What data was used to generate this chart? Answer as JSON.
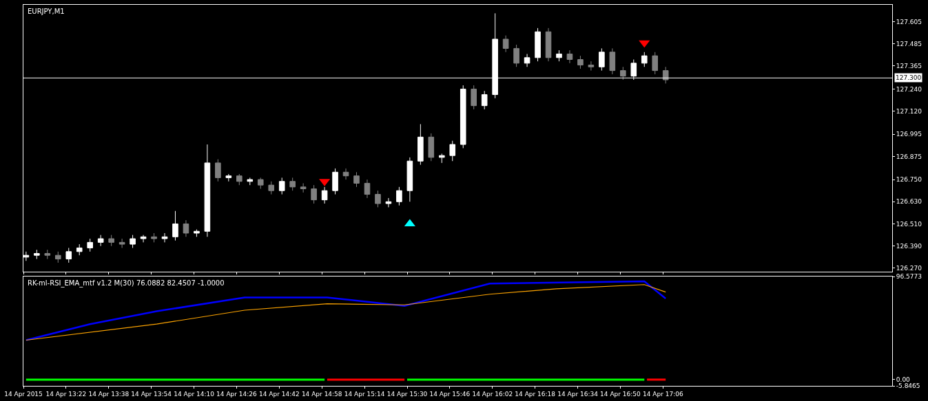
{
  "chart_data": [
    {
      "type": "candlestick",
      "title": "EURJPY,M1",
      "x": [
        "2015-04-14T13:07",
        "2015-04-14T13:11",
        "2015-04-14T13:15",
        "2015-04-14T13:19",
        "2015-04-14T13:23",
        "2015-04-14T13:27",
        "2015-04-14T13:31",
        "2015-04-14T13:35",
        "2015-04-14T13:39",
        "2015-04-14T13:43",
        "2015-04-14T13:47",
        "2015-04-14T13:51",
        "2015-04-14T13:55",
        "2015-04-14T13:59",
        "2015-04-14T14:03",
        "2015-04-14T14:07",
        "2015-04-14T14:11",
        "2015-04-14T14:15",
        "2015-04-14T14:19",
        "2015-04-14T14:23",
        "2015-04-14T14:27",
        "2015-04-14T14:31",
        "2015-04-14T14:35",
        "2015-04-14T14:39",
        "2015-04-14T14:43",
        "2015-04-14T14:47",
        "2015-04-14T14:51",
        "2015-04-14T14:55",
        "2015-04-14T14:59",
        "2015-04-14T15:03",
        "2015-04-14T15:07",
        "2015-04-14T15:11",
        "2015-04-14T15:15",
        "2015-04-14T15:19",
        "2015-04-14T15:23",
        "2015-04-14T15:27",
        "2015-04-14T15:31",
        "2015-04-14T15:35",
        "2015-04-14T15:39",
        "2015-04-14T15:43",
        "2015-04-14T15:47",
        "2015-04-14T15:51",
        "2015-04-14T15:55",
        "2015-04-14T15:59",
        "2015-04-14T16:03",
        "2015-04-14T16:07",
        "2015-04-14T16:11",
        "2015-04-14T16:15",
        "2015-04-14T16:19",
        "2015-04-14T16:23",
        "2015-04-14T16:27",
        "2015-04-14T16:31",
        "2015-04-14T16:35",
        "2015-04-14T16:39",
        "2015-04-14T16:43",
        "2015-04-14T16:47",
        "2015-04-14T16:51",
        "2015-04-14T16:55",
        "2015-04-14T16:59",
        "2015-04-14T17:03",
        "2015-04-14T17:07"
      ],
      "ohlc": [
        [
          126.33,
          126.36,
          126.31,
          126.34
        ],
        [
          126.34,
          126.37,
          126.32,
          126.35
        ],
        [
          126.35,
          126.37,
          126.32,
          126.34
        ],
        [
          126.34,
          126.36,
          126.3,
          126.32
        ],
        [
          126.32,
          126.38,
          126.3,
          126.36
        ],
        [
          126.36,
          126.4,
          126.34,
          126.38
        ],
        [
          126.38,
          126.43,
          126.36,
          126.41
        ],
        [
          126.41,
          126.45,
          126.39,
          126.43
        ],
        [
          126.43,
          126.45,
          126.39,
          126.41
        ],
        [
          126.41,
          126.43,
          126.38,
          126.4
        ],
        [
          126.4,
          126.45,
          126.38,
          126.43
        ],
        [
          126.43,
          126.45,
          126.41,
          126.44
        ],
        [
          126.44,
          126.46,
          126.41,
          126.43
        ],
        [
          126.43,
          126.46,
          126.41,
          126.44
        ],
        [
          126.44,
          126.58,
          126.42,
          126.51
        ],
        [
          126.51,
          126.53,
          126.44,
          126.46
        ],
        [
          126.46,
          126.48,
          126.44,
          126.47
        ],
        [
          126.47,
          126.94,
          126.44,
          126.84
        ],
        [
          126.84,
          126.86,
          126.74,
          126.76
        ],
        [
          126.76,
          126.78,
          126.74,
          126.77
        ],
        [
          126.77,
          126.78,
          126.72,
          126.74
        ],
        [
          126.74,
          126.76,
          126.72,
          126.75
        ],
        [
          126.75,
          126.76,
          126.7,
          126.72
        ],
        [
          126.72,
          126.74,
          126.67,
          126.69
        ],
        [
          126.69,
          126.76,
          126.67,
          126.74
        ],
        [
          126.74,
          126.76,
          126.69,
          126.71
        ],
        [
          126.71,
          126.73,
          126.68,
          126.7
        ],
        [
          126.7,
          126.72,
          126.62,
          126.64
        ],
        [
          126.64,
          126.71,
          126.62,
          126.69
        ],
        [
          126.69,
          126.81,
          126.67,
          126.79
        ],
        [
          126.79,
          126.81,
          126.75,
          126.77
        ],
        [
          126.77,
          126.79,
          126.71,
          126.73
        ],
        [
          126.73,
          126.75,
          126.65,
          126.67
        ],
        [
          126.67,
          126.69,
          126.6,
          126.62
        ],
        [
          126.62,
          126.65,
          126.6,
          126.63
        ],
        [
          126.63,
          126.71,
          126.61,
          126.69
        ],
        [
          126.69,
          126.87,
          126.63,
          126.85
        ],
        [
          126.85,
          127.05,
          126.83,
          126.98
        ],
        [
          126.98,
          127.0,
          126.85,
          126.87
        ],
        [
          126.87,
          126.89,
          126.84,
          126.88
        ],
        [
          126.88,
          126.96,
          126.85,
          126.94
        ],
        [
          126.94,
          127.26,
          126.92,
          127.24
        ],
        [
          127.24,
          127.26,
          127.13,
          127.15
        ],
        [
          127.15,
          127.23,
          127.13,
          127.21
        ],
        [
          127.21,
          127.65,
          127.19,
          127.51
        ],
        [
          127.51,
          127.53,
          127.44,
          127.46
        ],
        [
          127.46,
          127.48,
          127.36,
          127.38
        ],
        [
          127.38,
          127.43,
          127.36,
          127.41
        ],
        [
          127.41,
          127.57,
          127.39,
          127.55
        ],
        [
          127.55,
          127.57,
          127.39,
          127.41
        ],
        [
          127.41,
          127.45,
          127.39,
          127.43
        ],
        [
          127.43,
          127.45,
          127.38,
          127.4
        ],
        [
          127.4,
          127.42,
          127.35,
          127.37
        ],
        [
          127.37,
          127.39,
          127.34,
          127.36
        ],
        [
          127.36,
          127.46,
          127.34,
          127.44
        ],
        [
          127.44,
          127.46,
          127.32,
          127.34
        ],
        [
          127.34,
          127.36,
          127.29,
          127.31
        ],
        [
          127.31,
          127.4,
          127.29,
          127.38
        ],
        [
          127.38,
          127.44,
          127.36,
          127.42
        ],
        [
          127.42,
          127.44,
          127.32,
          127.34
        ],
        [
          127.34,
          127.36,
          127.27,
          127.29
        ]
      ],
      "colors": [
        "#ffffff",
        "#ffffff",
        "#808080",
        "#808080",
        "#ffffff",
        "#ffffff",
        "#ffffff",
        "#ffffff",
        "#808080",
        "#808080",
        "#ffffff",
        "#ffffff",
        "#808080",
        "#ffffff",
        "#ffffff",
        "#808080",
        "#ffffff",
        "#ffffff",
        "#808080",
        "#ffffff",
        "#808080",
        "#ffffff",
        "#808080",
        "#808080",
        "#ffffff",
        "#808080",
        "#808080",
        "#808080",
        "#ffffff",
        "#ffffff",
        "#808080",
        "#808080",
        "#808080",
        "#808080",
        "#ffffff",
        "#ffffff",
        "#ffffff",
        "#ffffff",
        "#808080",
        "#ffffff",
        "#ffffff",
        "#ffffff",
        "#808080",
        "#ffffff",
        "#ffffff",
        "#808080",
        "#808080",
        "#ffffff",
        "#ffffff",
        "#808080",
        "#ffffff",
        "#808080",
        "#808080",
        "#808080",
        "#ffffff",
        "#808080",
        "#808080",
        "#ffffff",
        "#ffffff",
        "#808080",
        "#808080"
      ],
      "series": [
        {
          "type": "scatter",
          "color": "#ff0000",
          "marker": "triangle",
          "x": [
            "2015-04-14T14:59",
            "2015-04-14T16:59"
          ],
          "values": [
            126.74,
            127.49
          ]
        },
        {
          "type": "scatter",
          "color": "#00ffff",
          "marker": "triangle",
          "x": [
            "2015-04-14T15:31"
          ],
          "values": [
            126.51
          ]
        }
      ],
      "ref_lines": [
        {
          "axis": "y",
          "value": 127.3,
          "label": "127.300",
          "color": "#ffffff"
        }
      ],
      "xlim": [
        "2015-04-14T13:06",
        "2015-04-14T18:32"
      ],
      "xticks": [
        {
          "value": "2015-04-14T13:06",
          "label": null
        },
        {
          "value": "2015-04-14T13:22",
          "label": null
        },
        {
          "value": "2015-04-14T13:38",
          "label": null
        },
        {
          "value": "2015-04-14T13:54",
          "label": null
        },
        {
          "value": "2015-04-14T14:10",
          "label": null
        },
        {
          "value": "2015-04-14T14:26",
          "label": null
        },
        {
          "value": "2015-04-14T14:42",
          "label": null
        },
        {
          "value": "2015-04-14T14:58",
          "label": null
        },
        {
          "value": "2015-04-14T15:14",
          "label": null
        },
        {
          "value": "2015-04-14T15:30",
          "label": null
        },
        {
          "value": "2015-04-14T15:46",
          "label": null
        },
        {
          "value": "2015-04-14T16:02",
          "label": null
        },
        {
          "value": "2015-04-14T16:18",
          "label": null
        },
        {
          "value": "2015-04-14T16:34",
          "label": null
        },
        {
          "value": "2015-04-14T16:50",
          "label": null
        },
        {
          "value": "2015-04-14T17:06",
          "label": null
        }
      ],
      "ylim": [
        126.252,
        127.696
      ],
      "yticks": [
        {
          "value": 126.27,
          "label": "126.270"
        },
        {
          "value": 126.39,
          "label": "126.390"
        },
        {
          "value": 126.51,
          "label": "126.510"
        },
        {
          "value": 126.63,
          "label": "126.630"
        },
        {
          "value": 126.75,
          "label": "126.750"
        },
        {
          "value": 126.875,
          "label": "126.875"
        },
        {
          "value": 126.995,
          "label": "126.995"
        },
        {
          "value": 127.12,
          "label": "127.120"
        },
        {
          "value": 127.24,
          "label": "127.240"
        },
        {
          "value": 127.365,
          "label": "127.365"
        },
        {
          "value": 127.485,
          "label": "127.485"
        },
        {
          "value": 127.605,
          "label": "127.605"
        }
      ],
      "tick_labels": "y",
      "grid": false
    },
    {
      "type": "line",
      "title": "RK-ml-RSI_EMA_mtf v1.2 M(30) 76.0882 82.4507 -1.0000",
      "series": [
        {
          "color": "#0000ff",
          "x": [
            "2015-04-14T13:07",
            "2015-04-14T13:31",
            "2015-04-14T13:56",
            "2015-04-14T14:29",
            "2015-04-14T15:00",
            "2015-04-14T15:29",
            "2015-04-14T16:01",
            "2015-04-14T16:59",
            "2015-04-14T17:07"
          ],
          "values": [
            37,
            52,
            64,
            77,
            77,
            69,
            90,
            92,
            76
          ]
        },
        {
          "color": "#ffa500",
          "x": [
            "2015-04-14T13:07",
            "2015-04-14T13:56",
            "2015-04-14T14:29",
            "2015-04-14T15:00",
            "2015-04-14T15:29",
            "2015-04-14T16:01",
            "2015-04-14T16:26",
            "2015-04-14T16:59",
            "2015-04-14T17:07"
          ],
          "values": [
            37,
            52,
            65,
            71,
            70,
            80,
            85,
            89,
            82
          ]
        },
        {
          "color": "#00ff00",
          "x": [
            "2015-04-14T13:07",
            "2015-04-14T14:59",
            "2015-04-14T15:15",
            "2015-04-14T15:30",
            "2015-04-14T16:59"
          ],
          "values": [
            0,
            0,
            null,
            0,
            0
          ]
        },
        {
          "color": "#ff0000",
          "x": [
            "2015-04-14T15:00",
            "2015-04-14T15:29",
            "2015-04-14T16:00",
            "2015-04-14T17:00",
            "2015-04-14T17:07"
          ],
          "values": [
            0,
            0,
            null,
            0,
            0
          ]
        }
      ],
      "xlim": [
        "2015-04-14T13:06",
        "2015-04-14T18:32"
      ],
      "xticks": [
        {
          "value": "2015-04-14T13:06",
          "label": "14 Apr 2015"
        },
        {
          "value": "2015-04-14T13:22",
          "label": "14 Apr 13:22"
        },
        {
          "value": "2015-04-14T13:38",
          "label": "14 Apr 13:38"
        },
        {
          "value": "2015-04-14T13:54",
          "label": "14 Apr 13:54"
        },
        {
          "value": "2015-04-14T14:10",
          "label": "14 Apr 14:10"
        },
        {
          "value": "2015-04-14T14:26",
          "label": "14 Apr 14:26"
        },
        {
          "value": "2015-04-14T14:42",
          "label": "14 Apr 14:42"
        },
        {
          "value": "2015-04-14T14:58",
          "label": "14 Apr 14:58"
        },
        {
          "value": "2015-04-14T15:14",
          "label": "14 Apr 15:14"
        },
        {
          "value": "2015-04-14T15:30",
          "label": "14 Apr 15:30"
        },
        {
          "value": "2015-04-14T15:46",
          "label": "14 Apr 15:46"
        },
        {
          "value": "2015-04-14T16:02",
          "label": "14 Apr 16:02"
        },
        {
          "value": "2015-04-14T16:18",
          "label": "14 Apr 16:18"
        },
        {
          "value": "2015-04-14T16:34",
          "label": "14 Apr 16:34"
        },
        {
          "value": "2015-04-14T16:50",
          "label": "14 Apr 16:50"
        },
        {
          "value": "2015-04-14T17:06",
          "label": "14 Apr 17:06"
        }
      ],
      "ylim": [
        -5.8465,
        96.5773
      ],
      "yticks": [
        {
          "value": -5.8465,
          "label": "-5.8465"
        },
        {
          "value": 0,
          "label": "0.00"
        },
        {
          "value": 96.5773,
          "label": "96.5773"
        }
      ],
      "marker": "none",
      "line_style": "solid",
      "grid": false
    }
  ]
}
